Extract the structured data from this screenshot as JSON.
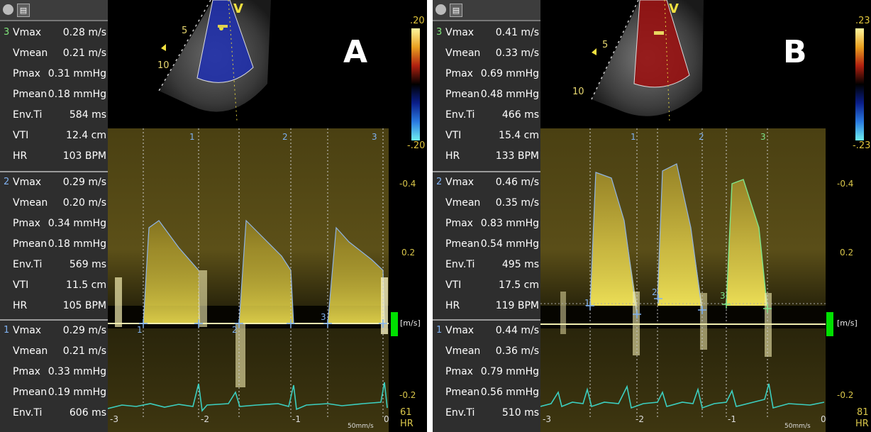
{
  "panels": [
    {
      "id": "A",
      "letter": "A",
      "probe": {
        "marker": "V",
        "depth_5": "5",
        "depth_10": "10"
      },
      "color_scale": {
        "top": ".20",
        "bottom": "-.20"
      },
      "velocity_axis": {
        "top": "-0.4",
        "mid": "0.2",
        "bottom": "-0.2",
        "unit": "[m/s]"
      },
      "beat_labels": [
        "1",
        "2",
        "3"
      ],
      "cursor_labels": [
        "1",
        "2",
        "3"
      ],
      "time_labels": [
        "-3",
        "-2",
        "-1",
        "0"
      ],
      "sweep": "50mm/s",
      "hr_value": "61",
      "hr_label": "HR",
      "measurements": [
        {
          "index": "3",
          "rows": [
            {
              "label": "Vmax",
              "value": "0.28 m/s"
            },
            {
              "label": "Vmean",
              "value": "0.21 m/s"
            },
            {
              "label": "Pmax",
              "value": "0.31 mmHg"
            },
            {
              "label": "Pmean",
              "value": "0.18 mmHg"
            },
            {
              "label": "Env.Ti",
              "value": "584 ms"
            },
            {
              "label": "VTI",
              "value": "12.4 cm"
            },
            {
              "label": "HR",
              "value": "103 BPM"
            }
          ]
        },
        {
          "index": "2",
          "rows": [
            {
              "label": "Vmax",
              "value": "0.29 m/s"
            },
            {
              "label": "Vmean",
              "value": "0.20 m/s"
            },
            {
              "label": "Pmax",
              "value": "0.34 mmHg"
            },
            {
              "label": "Pmean",
              "value": "0.18 mmHg"
            },
            {
              "label": "Env.Ti",
              "value": "569 ms"
            },
            {
              "label": "VTI",
              "value": "11.5 cm"
            },
            {
              "label": "HR",
              "value": "105 BPM"
            }
          ]
        },
        {
          "index": "1",
          "rows": [
            {
              "label": "Vmax",
              "value": "0.29 m/s"
            },
            {
              "label": "Vmean",
              "value": "0.21 m/s"
            },
            {
              "label": "Pmax",
              "value": "0.33 mmHg"
            },
            {
              "label": "Pmean",
              "value": "0.19 mmHg"
            },
            {
              "label": "Env.Ti",
              "value": "606 ms"
            }
          ]
        }
      ]
    },
    {
      "id": "B",
      "letter": "B",
      "probe": {
        "marker": "V",
        "depth_5": "5",
        "depth_10": "10"
      },
      "color_scale": {
        "top": ".23",
        "bottom": "-.23"
      },
      "velocity_axis": {
        "top": "-0.4",
        "mid": "0.2",
        "bottom": "-0.2",
        "unit": "[m/s]"
      },
      "beat_labels": [
        "1",
        "2",
        "3"
      ],
      "cursor_labels": [
        "1",
        "2",
        "3"
      ],
      "time_labels": [
        "-3",
        "-2",
        "-1",
        "0"
      ],
      "sweep": "50mm/s",
      "hr_value": "81",
      "hr_label": "HR",
      "measurements": [
        {
          "index": "3",
          "rows": [
            {
              "label": "Vmax",
              "value": "0.41 m/s"
            },
            {
              "label": "Vmean",
              "value": "0.33 m/s"
            },
            {
              "label": "Pmax",
              "value": "0.69 mmHg"
            },
            {
              "label": "Pmean",
              "value": "0.48 mmHg"
            },
            {
              "label": "Env.Ti",
              "value": "466 ms"
            },
            {
              "label": "VTI",
              "value": "15.4 cm"
            },
            {
              "label": "HR",
              "value": "133 BPM"
            }
          ]
        },
        {
          "index": "2",
          "rows": [
            {
              "label": "Vmax",
              "value": "0.46 m/s"
            },
            {
              "label": "Vmean",
              "value": "0.35 m/s"
            },
            {
              "label": "Pmax",
              "value": "0.83 mmHg"
            },
            {
              "label": "Pmean",
              "value": "0.54 mmHg"
            },
            {
              "label": "Env.Ti",
              "value": "495 ms"
            },
            {
              "label": "VTI",
              "value": "17.5 cm"
            },
            {
              "label": "HR",
              "value": "119 BPM"
            }
          ]
        },
        {
          "index": "1",
          "rows": [
            {
              "label": "Vmax",
              "value": "0.44 m/s"
            },
            {
              "label": "Vmean",
              "value": "0.36 m/s"
            },
            {
              "label": "Pmax",
              "value": "0.79 mmHg"
            },
            {
              "label": "Pmean",
              "value": "0.56 mmHg"
            },
            {
              "label": "Env.Ti",
              "value": "510 ms"
            }
          ]
        }
      ]
    }
  ],
  "colors": {
    "spectrum": "#e8d447",
    "envelope": "#8fb4e6",
    "envelope_green": "#7ee58a",
    "ecg": "#3ccfc0",
    "baseline": "#f2efb0",
    "hr_green": "#00e000"
  }
}
